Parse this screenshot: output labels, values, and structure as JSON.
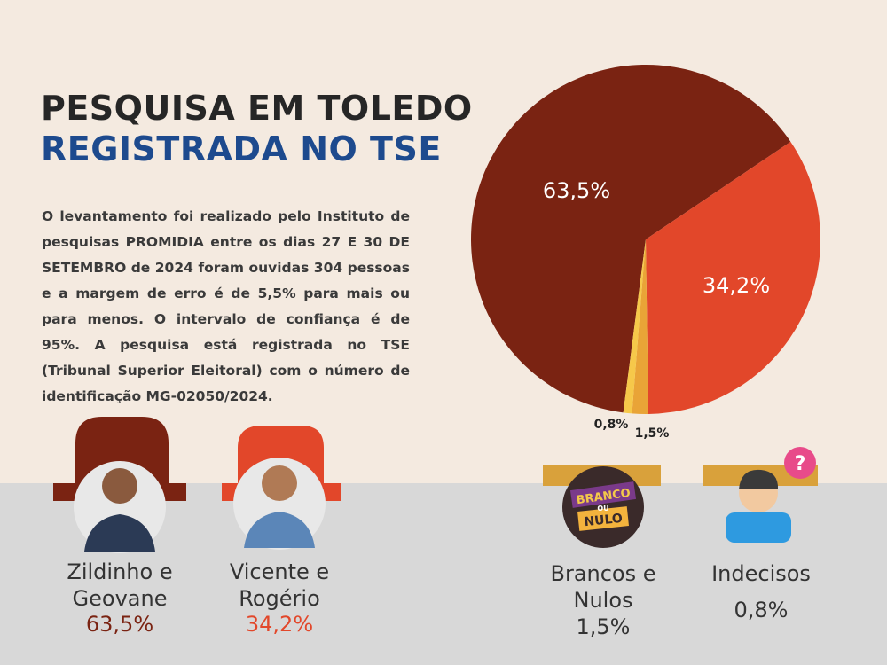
{
  "title_line1": "PESQUISA EM TOLEDO",
  "title_line2": "REGISTRADA NO TSE",
  "description": "O levantamento foi realizado pelo Instituto de pesquisas PROMIDIA entre os dias 27 E 30 DE SETEMBRO de 2024 foram ouvidas 304 pessoas e a margem de erro é de 5,5% para mais ou para menos. O intervalo de confiança é de 95%. A pesquisa está registrada no TSE (Tribunal Superior Eleitoral) com o número de identificação MG-02050/2024.",
  "icon_text_line1": "BRANCO",
  "icon_text_line2": "OU",
  "icon_text_line3": "NULO",
  "chart_data": {
    "type": "pie",
    "categories": [
      "Zildinho e Geovane",
      "Vicente e Rogério",
      "Brancos e Nulos",
      "Indecisos"
    ],
    "values": [
      63.5,
      34.2,
      1.5,
      0.8
    ],
    "value_labels": [
      "63,5%",
      "34,2%",
      "1,5%",
      "0,8%"
    ],
    "colors": [
      "#7a2312",
      "#e2472a",
      "#e9a437",
      "#f6c84a"
    ]
  }
}
